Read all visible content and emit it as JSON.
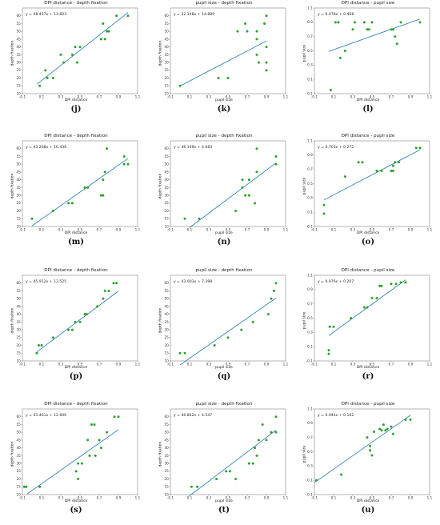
{
  "colors": {
    "points": "#2ca02c",
    "fit_line": "#1f77b4",
    "frame": "#444444"
  },
  "chart_data": [
    {
      "label": "(j)",
      "type": "scatter",
      "title": "DPI distance - depth fixation",
      "xlabel": "DPI distance",
      "ylabel": "depth fixation",
      "equation": "y = 48.457x + 13.603",
      "xlim": [
        -0.1,
        1.1
      ],
      "ylim": [
        10,
        65
      ],
      "xticks": [
        "-0.1",
        "0.1",
        "0.3",
        "0.5",
        "0.7",
        "0.9",
        "1.1"
      ],
      "yticks": [
        "10",
        "15",
        "20",
        "25",
        "30",
        "35",
        "40",
        "45",
        "50",
        "55",
        "60"
      ],
      "fit": {
        "slope": 48.457,
        "intercept": 13.603,
        "x_range": [
          0.05,
          1.0
        ]
      },
      "points": [
        [
          0.08,
          15
        ],
        [
          0.14,
          25
        ],
        [
          0.16,
          20
        ],
        [
          0.22,
          20
        ],
        [
          0.3,
          35
        ],
        [
          0.33,
          30
        ],
        [
          0.42,
          35
        ],
        [
          0.45,
          40
        ],
        [
          0.47,
          30
        ],
        [
          0.5,
          40
        ],
        [
          0.72,
          45
        ],
        [
          0.74,
          55
        ],
        [
          0.76,
          45
        ],
        [
          0.78,
          50
        ],
        [
          0.8,
          50
        ],
        [
          0.88,
          60
        ],
        [
          1.0,
          60
        ]
      ]
    },
    {
      "label": "(k)",
      "type": "scatter",
      "title": "pupil size - depth fixation",
      "xlabel": "pupil size",
      "ylabel": "depth fixation",
      "equation": "y = 32.148x + 14.889",
      "xlim": [
        -0.1,
        1.1
      ],
      "ylim": [
        10,
        65
      ],
      "xticks": [
        "-0.1",
        "0.1",
        "0.3",
        "0.5",
        "0.7",
        "0.9",
        "1.1"
      ],
      "yticks": [
        "10",
        "15",
        "20",
        "25",
        "30",
        "35",
        "40",
        "45",
        "50",
        "55",
        "60"
      ],
      "fit": {
        "slope": 32.148,
        "intercept": 14.889,
        "x_range": [
          0.0,
          0.9
        ]
      },
      "points": [
        [
          0.0,
          15
        ],
        [
          0.4,
          20
        ],
        [
          0.5,
          20
        ],
        [
          0.6,
          50
        ],
        [
          0.68,
          55
        ],
        [
          0.7,
          50
        ],
        [
          0.8,
          50
        ],
        [
          0.8,
          45
        ],
        [
          0.8,
          35
        ],
        [
          0.82,
          30
        ],
        [
          0.9,
          60
        ],
        [
          0.9,
          40
        ],
        [
          0.9,
          30
        ],
        [
          0.9,
          25
        ],
        [
          0.88,
          55
        ]
      ]
    },
    {
      "label": "(l)",
      "type": "scatter",
      "title": "DPI distance - pupil size",
      "xlabel": "DPI distance",
      "ylabel": "pupil size",
      "equation": "y = 0.478x + 0.468",
      "xlim": [
        -0.1,
        1.1
      ],
      "ylim": [
        -0.1,
        1.1
      ],
      "xticks": [
        "-0.1",
        "0.1",
        "0.3",
        "0.5",
        "0.7",
        "0.9",
        "1.1"
      ],
      "yticks": [
        "-0.1",
        "0.1",
        "0.3",
        "0.5",
        "0.7",
        "0.9",
        "1.1"
      ],
      "fit": {
        "slope": 0.478,
        "intercept": 0.468,
        "x_range": [
          0.05,
          1.0
        ]
      },
      "points": [
        [
          0.07,
          -0.05
        ],
        [
          0.12,
          0.9
        ],
        [
          0.15,
          0.9
        ],
        [
          0.17,
          0.4
        ],
        [
          0.22,
          0.5
        ],
        [
          0.3,
          0.8
        ],
        [
          0.32,
          0.9
        ],
        [
          0.42,
          0.9
        ],
        [
          0.45,
          0.8
        ],
        [
          0.47,
          0.8
        ],
        [
          0.5,
          0.9
        ],
        [
          0.7,
          0.8
        ],
        [
          0.72,
          0.8
        ],
        [
          0.74,
          0.7
        ],
        [
          0.76,
          0.6
        ],
        [
          0.8,
          0.9
        ],
        [
          1.0,
          0.9
        ]
      ]
    },
    {
      "label": "(m)",
      "type": "scatter",
      "title": "DPI distance - depth fixation",
      "xlabel": "DPI distance",
      "ylabel": "depth fixation",
      "equation": "y = 43.268x + 10.436",
      "xlim": [
        -0.1,
        1.1
      ],
      "ylim": [
        10,
        65
      ],
      "xticks": [
        "-0.1",
        "0.1",
        "0.3",
        "0.5",
        "0.7",
        "0.9",
        "1.1"
      ],
      "yticks": [
        "10",
        "15",
        "20",
        "25",
        "30",
        "35",
        "40",
        "45",
        "50",
        "55",
        "60"
      ],
      "fit": {
        "slope": 43.268,
        "intercept": 10.436,
        "x_range": [
          0.0,
          1.0
        ]
      },
      "points": [
        [
          0.0,
          15
        ],
        [
          0.22,
          20
        ],
        [
          0.38,
          25
        ],
        [
          0.42,
          25
        ],
        [
          0.55,
          35
        ],
        [
          0.58,
          35
        ],
        [
          0.72,
          30
        ],
        [
          0.74,
          30
        ],
        [
          0.74,
          40
        ],
        [
          0.76,
          45
        ],
        [
          0.78,
          60
        ],
        [
          0.96,
          55
        ],
        [
          0.96,
          50
        ],
        [
          1.0,
          50
        ]
      ]
    },
    {
      "label": "(n)",
      "type": "scatter",
      "title": "pupil size - depth fixation",
      "xlabel": "pupil size",
      "ylabel": "depth fixation",
      "equation": "y = 46.149x + 4.683",
      "xlim": [
        -0.1,
        1.1
      ],
      "ylim": [
        10,
        65
      ],
      "xticks": [
        "-0.1",
        "0.1",
        "0.3",
        "0.5",
        "0.7",
        "0.9",
        "1.1"
      ],
      "yticks": [
        "10",
        "15",
        "20",
        "25",
        "30",
        "35",
        "40",
        "45",
        "50",
        "55",
        "60"
      ],
      "fit": {
        "slope": 46.149,
        "intercept": 4.683,
        "x_range": [
          0.1,
          1.0
        ]
      },
      "points": [
        [
          0.05,
          15
        ],
        [
          0.2,
          15
        ],
        [
          0.58,
          20
        ],
        [
          0.65,
          35
        ],
        [
          0.65,
          40
        ],
        [
          0.68,
          30
        ],
        [
          0.72,
          30
        ],
        [
          0.72,
          40
        ],
        [
          0.78,
          25
        ],
        [
          0.8,
          60
        ],
        [
          0.8,
          45
        ],
        [
          1.0,
          55
        ],
        [
          1.0,
          50
        ]
      ]
    },
    {
      "label": "(o)",
      "type": "scatter",
      "title": "DPI distance - pupil size",
      "xlabel": "DPI distance",
      "ylabel": "pupil size",
      "equation": "y = 0.703x + 0.272",
      "xlim": [
        -0.1,
        1.1
      ],
      "ylim": [
        -0.1,
        1.1
      ],
      "xticks": [
        "-0.1",
        "0.1",
        "0.3",
        "0.5",
        "0.7",
        "0.9",
        "1.1"
      ],
      "yticks": [
        "-0.1",
        "0.1",
        "0.3",
        "0.5",
        "0.7",
        "0.9",
        "1.1"
      ],
      "fit": {
        "slope": 0.703,
        "intercept": 0.272,
        "x_range": [
          0.0,
          1.0
        ]
      },
      "points": [
        [
          0.0,
          0.2
        ],
        [
          0.0,
          0.08
        ],
        [
          0.22,
          0.6
        ],
        [
          0.36,
          0.8
        ],
        [
          0.4,
          0.8
        ],
        [
          0.55,
          0.68
        ],
        [
          0.6,
          0.68
        ],
        [
          0.7,
          0.68
        ],
        [
          0.72,
          0.68
        ],
        [
          0.72,
          0.75
        ],
        [
          0.74,
          0.8
        ],
        [
          0.78,
          0.8
        ],
        [
          0.96,
          1.0
        ],
        [
          1.0,
          1.0
        ]
      ]
    },
    {
      "label": "(p)",
      "type": "scatter",
      "title": "DPI distance - depth fixation",
      "xlabel": "DPI distance",
      "ylabel": "depth fixation",
      "equation": "y = 45.912x + 13.525",
      "xlim": [
        -0.1,
        1.1
      ],
      "ylim": [
        10,
        65
      ],
      "xticks": [
        "-0.1",
        "0.1",
        "0.3",
        "0.5",
        "0.7",
        "0.9",
        "1.1"
      ],
      "yticks": [
        "10",
        "15",
        "20",
        "25",
        "30",
        "35",
        "40",
        "45",
        "50",
        "55",
        "60"
      ],
      "fit": {
        "slope": 45.912,
        "intercept": 13.525,
        "x_range": [
          0.05,
          0.9
        ]
      },
      "points": [
        [
          0.05,
          15
        ],
        [
          0.07,
          20
        ],
        [
          0.1,
          20
        ],
        [
          0.22,
          25
        ],
        [
          0.38,
          30
        ],
        [
          0.42,
          30
        ],
        [
          0.45,
          35
        ],
        [
          0.5,
          35
        ],
        [
          0.55,
          40
        ],
        [
          0.57,
          40
        ],
        [
          0.68,
          45
        ],
        [
          0.74,
          50
        ],
        [
          0.76,
          55
        ],
        [
          0.8,
          55
        ],
        [
          0.85,
          60
        ],
        [
          0.88,
          60
        ]
      ]
    },
    {
      "label": "(q)",
      "type": "scatter",
      "title": "pupil size - depth fixation",
      "xlabel": "pupil size",
      "ylabel": "depth fixation",
      "equation": "y = 43.003x + 7.398",
      "xlim": [
        -0.1,
        1.1
      ],
      "ylim": [
        10,
        65
      ],
      "xticks": [
        "-0.1",
        "0.1",
        "0.3",
        "0.5",
        "0.7",
        "0.9",
        "1.1"
      ],
      "yticks": [
        "10",
        "15",
        "20",
        "25",
        "30",
        "35",
        "40",
        "45",
        "50",
        "55",
        "60"
      ],
      "fit": {
        "slope": 43.003,
        "intercept": 7.398,
        "x_range": [
          0.0,
          1.0
        ]
      },
      "points": [
        [
          0.0,
          15
        ],
        [
          0.05,
          15
        ],
        [
          0.36,
          20
        ],
        [
          0.5,
          25
        ],
        [
          0.64,
          30
        ],
        [
          0.76,
          35
        ],
        [
          0.92,
          40
        ],
        [
          0.95,
          50
        ],
        [
          0.98,
          55
        ],
        [
          1.0,
          60
        ]
      ]
    },
    {
      "label": "(r)",
      "type": "scatter",
      "title": "DPI distance - pupil size",
      "xlabel": "DPI distance",
      "ylabel": "pupil size",
      "equation": "y = 0.976x + 0.207",
      "xlim": [
        -0.1,
        1.1
      ],
      "ylim": [
        -0.1,
        1.1
      ],
      "xticks": [
        "-0.1",
        "0.1",
        "0.3",
        "0.5",
        "0.7",
        "0.9",
        "1.1"
      ],
      "yticks": [
        "-0.1",
        "0.1",
        "0.3",
        "0.5",
        "0.7",
        "0.9",
        "1.1"
      ],
      "fit": {
        "slope": 0.976,
        "intercept": 0.207,
        "x_range": [
          0.05,
          0.85
        ]
      },
      "points": [
        [
          0.05,
          0.0
        ],
        [
          0.05,
          0.05
        ],
        [
          0.06,
          0.38
        ],
        [
          0.1,
          0.38
        ],
        [
          0.28,
          0.5
        ],
        [
          0.42,
          0.65
        ],
        [
          0.45,
          0.65
        ],
        [
          0.5,
          0.78
        ],
        [
          0.55,
          0.78
        ],
        [
          0.58,
          0.95
        ],
        [
          0.6,
          0.95
        ],
        [
          0.7,
          0.98
        ],
        [
          0.75,
          0.98
        ],
        [
          0.8,
          1.0
        ],
        [
          0.85,
          1.0
        ]
      ]
    },
    {
      "label": "(s)",
      "type": "scatter",
      "title": "DPI distance - depth fixation",
      "xlabel": "DPI distance",
      "ylabel": "depth fixation",
      "equation": "y = 43.461x + 12.606",
      "xlim": [
        -0.1,
        1.1
      ],
      "ylim": [
        10,
        65
      ],
      "xticks": [
        "-0.1",
        "0.1",
        "0.3",
        "0.5",
        "0.7",
        "0.9",
        "1.1"
      ],
      "yticks": [
        "10",
        "15",
        "20",
        "25",
        "30",
        "35",
        "40",
        "45",
        "50",
        "55",
        "60"
      ],
      "fit": {
        "slope": 43.461,
        "intercept": 12.606,
        "x_range": [
          -0.05,
          0.9
        ]
      },
      "points": [
        [
          -0.08,
          15
        ],
        [
          -0.06,
          15
        ],
        [
          0.08,
          15
        ],
        [
          0.46,
          25
        ],
        [
          0.48,
          20
        ],
        [
          0.48,
          30
        ],
        [
          0.52,
          30
        ],
        [
          0.58,
          45
        ],
        [
          0.6,
          35
        ],
        [
          0.62,
          55
        ],
        [
          0.65,
          55
        ],
        [
          0.66,
          35
        ],
        [
          0.7,
          45
        ],
        [
          0.72,
          40
        ],
        [
          0.78,
          50
        ],
        [
          0.86,
          60
        ],
        [
          0.9,
          60
        ]
      ]
    },
    {
      "label": "(t)",
      "type": "scatter",
      "title": "pupil size - depth fixation",
      "xlabel": "pupil size",
      "ylabel": "depth fixation",
      "equation": "y = 46.842x + 4.547",
      "xlim": [
        -0.1,
        1.1
      ],
      "ylim": [
        10,
        65
      ],
      "xticks": [
        "-0.1",
        "0.1",
        "0.3",
        "0.5",
        "0.7",
        "0.9",
        "1.1"
      ],
      "yticks": [
        "10",
        "15",
        "20",
        "25",
        "30",
        "35",
        "40",
        "45",
        "50",
        "55",
        "60"
      ],
      "fit": {
        "slope": 46.842,
        "intercept": 4.547,
        "x_range": [
          0.1,
          1.0
        ]
      },
      "points": [
        [
          0.12,
          15
        ],
        [
          0.18,
          15
        ],
        [
          0.38,
          20
        ],
        [
          0.48,
          25
        ],
        [
          0.52,
          25
        ],
        [
          0.58,
          20
        ],
        [
          0.72,
          30
        ],
        [
          0.76,
          30
        ],
        [
          0.78,
          40
        ],
        [
          0.8,
          35
        ],
        [
          0.82,
          45
        ],
        [
          0.86,
          55
        ],
        [
          0.9,
          45
        ],
        [
          0.95,
          50
        ],
        [
          1.0,
          50
        ],
        [
          1.0,
          60
        ]
      ]
    },
    {
      "label": "(u)",
      "type": "scatter",
      "title": "DPI distance - pupil size",
      "xlabel": "DPI distance",
      "ylabel": "pupil size",
      "equation": "y = 0.944x + 0.162",
      "xlim": [
        -0.1,
        1.1
      ],
      "ylim": [
        -0.1,
        1.1
      ],
      "xticks": [
        "-0.1",
        "0.1",
        "0.3",
        "0.5",
        "0.7",
        "0.9",
        "1.1"
      ],
      "yticks": [
        "-0.1",
        "0.1",
        "0.3",
        "0.5",
        "0.7",
        "0.9",
        "1.1"
      ],
      "fit": {
        "slope": 0.944,
        "intercept": 0.162,
        "x_range": [
          -0.1,
          0.9
        ]
      },
      "points": [
        [
          -0.08,
          0.1
        ],
        [
          0.18,
          0.18
        ],
        [
          0.45,
          0.7
        ],
        [
          0.48,
          0.58
        ],
        [
          0.48,
          0.52
        ],
        [
          0.5,
          0.45
        ],
        [
          0.52,
          0.78
        ],
        [
          0.58,
          0.82
        ],
        [
          0.6,
          0.8
        ],
        [
          0.62,
          0.88
        ],
        [
          0.64,
          0.8
        ],
        [
          0.66,
          0.82
        ],
        [
          0.7,
          0.85
        ],
        [
          0.72,
          0.75
        ],
        [
          0.85,
          0.95
        ],
        [
          0.9,
          0.95
        ]
      ]
    }
  ]
}
